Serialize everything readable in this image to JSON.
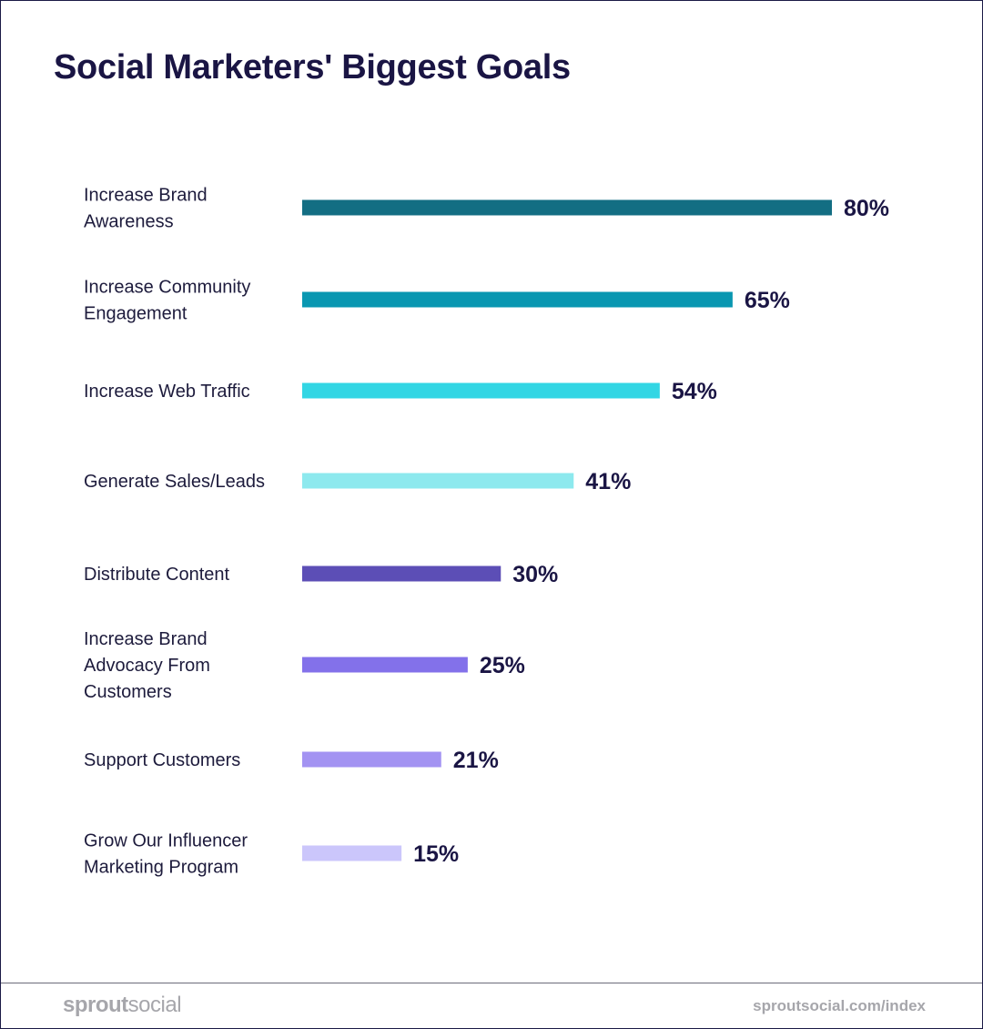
{
  "title": "Social Marketers' Biggest Goals",
  "chart_data": {
    "type": "bar",
    "orientation": "horizontal",
    "title": "Social Marketers' Biggest Goals",
    "value_suffix": "%",
    "categories": [
      "Increase Brand Awareness",
      "Increase Community Engagement",
      "Increase Web Traffic",
      "Generate Sales/Leads",
      "Distribute Content",
      "Increase Brand Advocacy From Customers",
      "Support Customers",
      "Grow Our Influencer Marketing Program"
    ],
    "label_lines": [
      [
        "Increase Brand",
        "Awareness"
      ],
      [
        "Increase Community",
        "Engagement"
      ],
      [
        "Increase Web Traffic"
      ],
      [
        "Generate Sales/Leads"
      ],
      [
        "Distribute Content"
      ],
      [
        "Increase Brand",
        "Advocacy From",
        "Customers"
      ],
      [
        "Support Customers"
      ],
      [
        "Grow Our Influencer",
        "Marketing Program"
      ]
    ],
    "values": [
      80,
      65,
      54,
      41,
      30,
      25,
      21,
      15
    ],
    "value_labels": [
      "80%",
      "65%",
      "54%",
      "41%",
      "30%",
      "25%",
      "21%",
      "15%"
    ],
    "colors": [
      "#136e83",
      "#0997b1",
      "#32d6e4",
      "#8de9ee",
      "#5c4eb6",
      "#8371ea",
      "#a393f2",
      "#cbc6fb"
    ],
    "xlim": [
      0,
      80
    ],
    "grid": false,
    "legend": "none"
  },
  "footer": {
    "brand_bold": "sprout",
    "brand_light": "social",
    "url": "sproutsocial.com/index"
  }
}
